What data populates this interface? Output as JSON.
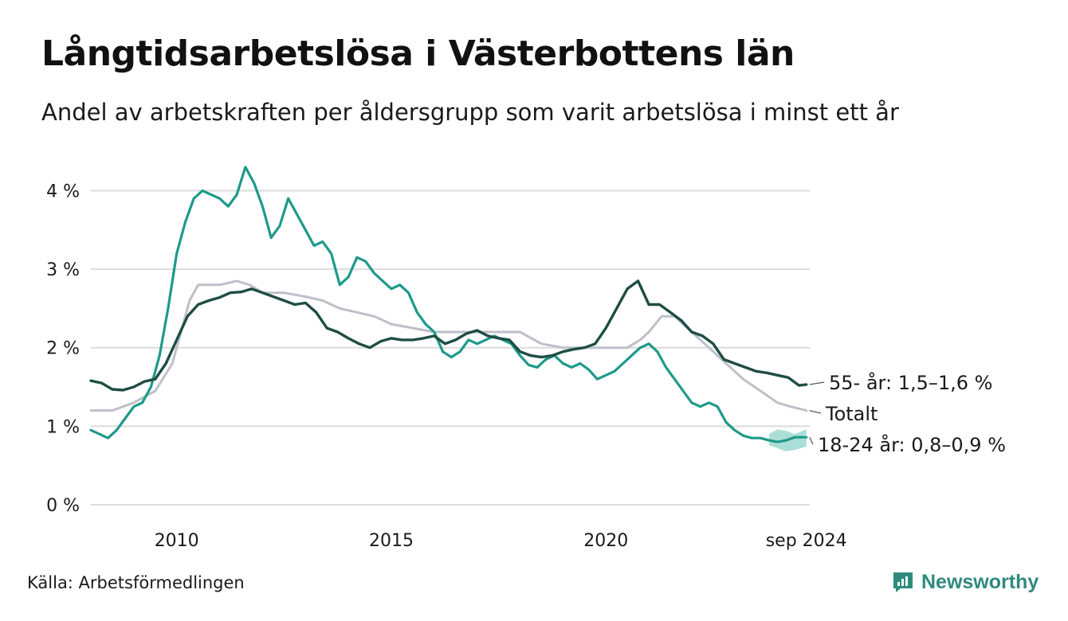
{
  "title": "Långtidsarbetslösa i Västerbottens län",
  "subtitle": "Andel av arbetskraften per åldersgrupp som varit arbetslösa i minst ett år",
  "source": "Källa: Arbetsförmedlingen",
  "brand": "Newsworthy",
  "colors": {
    "s55": "#1e4d44",
    "total": "#bfbfca",
    "s1824": "#1d9a8a",
    "band1824": "#8fd3ca",
    "grid": "#dcdcdc",
    "brand": "#2f8a7e"
  },
  "chart_data": {
    "type": "line",
    "title": "Långtidsarbetslösa i Västerbottens län",
    "subtitle": "Andel av arbetskraften per åldersgrupp som varit arbetslösa i minst ett år",
    "xlabel": "",
    "ylabel": "",
    "xlim": [
      2008.0,
      2024.75
    ],
    "ylim": [
      0,
      4.4
    ],
    "grid": true,
    "legend": "direct labels at line ends (right)",
    "x_ticks": [
      {
        "value": 2010.0,
        "label": "2010"
      },
      {
        "value": 2015.0,
        "label": "2015"
      },
      {
        "value": 2020.0,
        "label": "2020"
      },
      {
        "value": 2024.67,
        "label": "sep 2024"
      }
    ],
    "y_ticks": [
      {
        "value": 0,
        "label": "0 %"
      },
      {
        "value": 1,
        "label": "1 %"
      },
      {
        "value": 2,
        "label": "2 %"
      },
      {
        "value": 3,
        "label": "3 %"
      },
      {
        "value": 4,
        "label": "4 %"
      }
    ],
    "series": [
      {
        "key": "s55",
        "name": "55- år",
        "end_label": "55- år: 1,5–1,6 %",
        "x": [
          2008.0,
          2008.25,
          2008.5,
          2008.75,
          2009.0,
          2009.25,
          2009.5,
          2009.75,
          2010.0,
          2010.25,
          2010.5,
          2010.75,
          2011.0,
          2011.25,
          2011.5,
          2011.75,
          2012.0,
          2012.25,
          2012.5,
          2012.75,
          2013.0,
          2013.25,
          2013.5,
          2013.75,
          2014.0,
          2014.25,
          2014.5,
          2014.75,
          2015.0,
          2015.25,
          2015.5,
          2015.75,
          2016.0,
          2016.25,
          2016.5,
          2016.75,
          2017.0,
          2017.25,
          2017.5,
          2017.75,
          2018.0,
          2018.25,
          2018.5,
          2018.75,
          2019.0,
          2019.25,
          2019.5,
          2019.75,
          2020.0,
          2020.25,
          2020.5,
          2020.75,
          2021.0,
          2021.25,
          2021.5,
          2021.75,
          2022.0,
          2022.25,
          2022.5,
          2022.75,
          2023.0,
          2023.25,
          2023.5,
          2023.75,
          2024.0,
          2024.25,
          2024.5,
          2024.67
        ],
        "values": [
          1.58,
          1.55,
          1.47,
          1.46,
          1.5,
          1.57,
          1.6,
          1.8,
          2.1,
          2.4,
          2.55,
          2.6,
          2.64,
          2.7,
          2.71,
          2.75,
          2.7,
          2.65,
          2.6,
          2.55,
          2.57,
          2.45,
          2.25,
          2.2,
          2.12,
          2.05,
          2.0,
          2.08,
          2.12,
          2.1,
          2.1,
          2.12,
          2.15,
          2.05,
          2.1,
          2.18,
          2.22,
          2.15,
          2.12,
          2.1,
          1.95,
          1.9,
          1.88,
          1.9,
          1.95,
          1.98,
          2.0,
          2.05,
          2.25,
          2.5,
          2.75,
          2.85,
          2.55,
          2.55,
          2.45,
          2.35,
          2.2,
          2.15,
          2.05,
          1.85,
          1.8,
          1.75,
          1.7,
          1.68,
          1.65,
          1.62,
          1.52,
          1.53
        ]
      },
      {
        "key": "total",
        "name": "Totalt",
        "end_label": "Totalt",
        "x": [
          2008.0,
          2008.5,
          2009.0,
          2009.5,
          2009.9,
          2010.1,
          2010.3,
          2010.5,
          2011.0,
          2011.4,
          2011.7,
          2012.0,
          2012.5,
          2013.0,
          2013.4,
          2013.8,
          2014.2,
          2014.6,
          2015.0,
          2015.5,
          2016.0,
          2016.5,
          2017.0,
          2017.5,
          2018.0,
          2018.5,
          2019.0,
          2019.5,
          2020.0,
          2020.5,
          2020.8,
          2021.0,
          2021.3,
          2021.6,
          2022.0,
          2022.4,
          2022.8,
          2023.2,
          2023.6,
          2024.0,
          2024.3,
          2024.67
        ],
        "values": [
          1.2,
          1.2,
          1.3,
          1.45,
          1.8,
          2.2,
          2.6,
          2.8,
          2.8,
          2.85,
          2.8,
          2.7,
          2.7,
          2.65,
          2.6,
          2.5,
          2.45,
          2.4,
          2.3,
          2.25,
          2.2,
          2.2,
          2.2,
          2.2,
          2.2,
          2.05,
          2.0,
          2.0,
          2.0,
          2.0,
          2.1,
          2.2,
          2.4,
          2.4,
          2.2,
          2.0,
          1.8,
          1.6,
          1.45,
          1.3,
          1.25,
          1.2
        ]
      },
      {
        "key": "s1824",
        "name": "18-24 år",
        "end_label": "18-24 år: 0,8–0,9 %",
        "band": {
          "x": [
            2023.8,
            2024.0,
            2024.2,
            2024.4,
            2024.67
          ],
          "lower": [
            0.76,
            0.72,
            0.68,
            0.7,
            0.74
          ],
          "upper": [
            0.9,
            0.96,
            0.94,
            0.9,
            0.96
          ]
        },
        "x": [
          2008.0,
          2008.2,
          2008.4,
          2008.6,
          2008.8,
          2009.0,
          2009.2,
          2009.4,
          2009.6,
          2009.8,
          2010.0,
          2010.2,
          2010.4,
          2010.6,
          2010.8,
          2011.0,
          2011.2,
          2011.4,
          2011.6,
          2011.8,
          2012.0,
          2012.2,
          2012.4,
          2012.6,
          2012.8,
          2013.0,
          2013.2,
          2013.4,
          2013.6,
          2013.8,
          2014.0,
          2014.2,
          2014.4,
          2014.6,
          2014.8,
          2015.0,
          2015.2,
          2015.4,
          2015.6,
          2015.8,
          2016.0,
          2016.2,
          2016.4,
          2016.6,
          2016.8,
          2017.0,
          2017.2,
          2017.4,
          2017.6,
          2017.8,
          2018.0,
          2018.2,
          2018.4,
          2018.6,
          2018.8,
          2019.0,
          2019.2,
          2019.4,
          2019.6,
          2019.8,
          2020.0,
          2020.2,
          2020.4,
          2020.6,
          2020.8,
          2021.0,
          2021.2,
          2021.4,
          2021.6,
          2021.8,
          2022.0,
          2022.2,
          2022.4,
          2022.6,
          2022.8,
          2023.0,
          2023.2,
          2023.4,
          2023.6,
          2023.8,
          2024.0,
          2024.2,
          2024.4,
          2024.67
        ],
        "values": [
          0.95,
          0.9,
          0.85,
          0.95,
          1.1,
          1.25,
          1.3,
          1.5,
          1.9,
          2.5,
          3.2,
          3.6,
          3.9,
          4.0,
          3.95,
          3.9,
          3.8,
          3.95,
          4.3,
          4.1,
          3.8,
          3.4,
          3.55,
          3.9,
          3.7,
          3.5,
          3.3,
          3.35,
          3.2,
          2.8,
          2.9,
          3.15,
          3.1,
          2.95,
          2.85,
          2.75,
          2.8,
          2.7,
          2.45,
          2.3,
          2.2,
          1.95,
          1.88,
          1.95,
          2.1,
          2.05,
          2.1,
          2.15,
          2.1,
          2.05,
          1.9,
          1.78,
          1.75,
          1.85,
          1.9,
          1.8,
          1.75,
          1.8,
          1.72,
          1.6,
          1.65,
          1.7,
          1.8,
          1.9,
          2.0,
          2.05,
          1.95,
          1.75,
          1.6,
          1.45,
          1.3,
          1.25,
          1.3,
          1.25,
          1.05,
          0.95,
          0.88,
          0.85,
          0.85,
          0.82,
          0.8,
          0.82,
          0.86,
          0.86
        ]
      }
    ]
  }
}
